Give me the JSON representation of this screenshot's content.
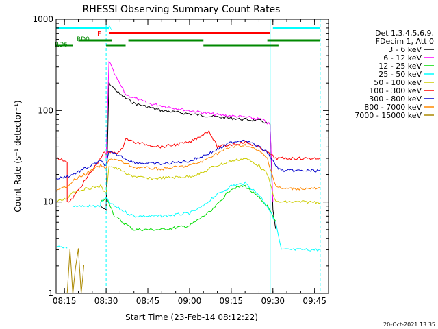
{
  "chart_data": {
    "type": "line",
    "title": "RHESSI Observing Summary Count Rates",
    "xlabel": "Start Time (23-Feb-14 08:12:22)",
    "ylabel": "Count Rate (s⁻¹ detector⁻¹)",
    "y_scale": "log",
    "ylim": [
      1,
      1000
    ],
    "xlim": [
      "08:12",
      "09:50"
    ],
    "x_ticks": [
      "08:15",
      "08:30",
      "08:45",
      "09:00",
      "09:15",
      "09:30",
      "09:45"
    ],
    "y_ticks": [
      "1",
      "10",
      "100",
      "1000"
    ],
    "footer": "20-Oct-2021 13:35",
    "legend_position": "right",
    "legend_header": [
      "Det 1,3,4,5,6,9,",
      "FDecim 1, Att 0"
    ],
    "series": [
      {
        "name": "3 - 6 keV",
        "color": "#000000",
        "x": [
          "08:12",
          "08:16",
          "08:16",
          "08:18",
          "08:18",
          "08:28",
          "08:28",
          "08:30",
          "08:30",
          "08:31",
          "08:35",
          "08:40",
          "08:50",
          "09:00",
          "09:10",
          "09:20",
          "09:26",
          "09:29",
          "09:30",
          "09:31"
        ],
        "y": [
          null,
          null,
          null,
          null,
          null,
          null,
          9,
          8,
          9,
          200,
          150,
          120,
          100,
          92,
          85,
          80,
          77,
          70,
          8,
          5
        ]
      },
      {
        "name": "6 - 12 keV",
        "color": "#ff00ff",
        "x": [
          "08:30",
          "08:31",
          "08:33",
          "08:37",
          "08:45",
          "09:00",
          "09:10",
          "09:20",
          "09:26",
          "09:29",
          "09:30"
        ],
        "y": [
          30,
          350,
          250,
          150,
          120,
          100,
          90,
          85,
          80,
          70,
          10
        ]
      },
      {
        "name": "12 - 25 keV",
        "color": "#00dd00",
        "x": [
          "08:28",
          "08:30",
          "08:31",
          "08:33",
          "08:36",
          "08:40",
          "08:50",
          "09:00",
          "09:05",
          "09:08",
          "09:15",
          "09:20",
          "09:25",
          "09:28",
          "09:31"
        ],
        "y": [
          10,
          11,
          10,
          7,
          6,
          5,
          5,
          5.5,
          7,
          8,
          14,
          15,
          11,
          9,
          6
        ]
      },
      {
        "name": "25 - 50 keV",
        "color": "#00ffff",
        "x": [
          "08:12",
          "08:16",
          "08:16",
          "08:18",
          "08:18",
          "08:28",
          "08:28",
          "08:30",
          "08:31",
          "08:33",
          "08:36",
          "08:40",
          "08:50",
          "09:00",
          "09:05",
          "09:08",
          "09:15",
          "09:20",
          "09:25",
          "09:28",
          "09:31",
          "09:33",
          "09:33",
          "09:47"
        ],
        "y": [
          3.2,
          3.2,
          null,
          null,
          9,
          9,
          10,
          11,
          10,
          9,
          8,
          7,
          7,
          7.5,
          9,
          11,
          15,
          16,
          12,
          9,
          6,
          3,
          3,
          3
        ]
      },
      {
        "name": "50 - 100 keV",
        "color": "#cccc00",
        "x": [
          "08:12",
          "08:16",
          "08:18",
          "08:28",
          "08:30",
          "08:31",
          "08:36",
          "08:37",
          "08:45",
          "09:00",
          "09:05",
          "09:08",
          "09:15",
          "09:20",
          "09:25",
          "09:28",
          "09:31",
          "09:33",
          "09:47"
        ],
        "y": [
          10,
          11,
          13,
          15,
          12,
          25,
          22,
          20,
          18,
          19,
          21,
          24,
          28,
          30,
          25,
          20,
          10,
          10,
          10
        ]
      },
      {
        "name": "100 - 300 keV",
        "color": "#ff0000",
        "x": [
          "08:12",
          "08:16",
          "08:16",
          "08:17",
          "08:28",
          "08:29",
          "08:30",
          "08:31",
          "08:35",
          "08:36",
          "08:37",
          "08:40",
          "08:50",
          "09:00",
          "09:05",
          "09:07",
          "09:10",
          "09:20",
          "09:25",
          "09:28",
          "09:31",
          "09:33",
          "09:47"
        ],
        "y": [
          30,
          28,
          10,
          10,
          30,
          35,
          33,
          35,
          35,
          40,
          50,
          45,
          40,
          45,
          55,
          60,
          40,
          45,
          40,
          35,
          30,
          30,
          30
        ]
      },
      {
        "name": "300 - 800 keV",
        "color": "#0000cc",
        "x": [
          "08:12",
          "08:16",
          "08:18",
          "08:28",
          "08:30",
          "08:31",
          "08:35",
          "08:40",
          "08:50",
          "09:00",
          "09:05",
          "09:08",
          "09:15",
          "09:20",
          "09:25",
          "09:28",
          "09:31",
          "09:33",
          "09:47"
        ],
        "y": [
          18,
          19,
          20,
          28,
          25,
          35,
          32,
          27,
          26,
          28,
          32,
          35,
          45,
          48,
          40,
          35,
          25,
          22,
          22
        ]
      },
      {
        "name": "800 - 7000 keV",
        "color": "#ff8800",
        "x": [
          "08:12",
          "08:16",
          "08:18",
          "08:28",
          "08:30",
          "08:31",
          "08:35",
          "08:40",
          "08:50",
          "09:00",
          "09:05",
          "09:08",
          "09:15",
          "09:20",
          "09:25",
          "09:28",
          "09:31",
          "09:33",
          "09:47"
        ],
        "y": [
          13,
          15,
          17,
          25,
          23,
          30,
          28,
          24,
          23,
          25,
          28,
          32,
          40,
          42,
          36,
          30,
          15,
          14,
          14
        ]
      },
      {
        "name": "7000 - 15000 keV",
        "color": "#aa8800",
        "x": [
          "08:16",
          "08:17",
          "08:18",
          "08:19",
          "08:20",
          "08:21",
          "08:22"
        ],
        "y": [
          1,
          3,
          1,
          2,
          3,
          1,
          2
        ]
      }
    ],
    "state_bars": [
      {
        "label": "N",
        "color": "#00ffff",
        "segments": [
          [
            "08:12",
            "08:31"
          ],
          [
            "09:30",
            "09:47"
          ]
        ],
        "row": "top"
      },
      {
        "label": "F",
        "color": "#ff0000",
        "segments": [
          [
            "08:31",
            "09:29"
          ]
        ],
        "row": "second"
      },
      {
        "label": "RD0",
        "color": "#008800",
        "segments": [
          [
            "08:20",
            "08:32"
          ],
          [
            "08:38",
            "09:05"
          ],
          [
            "09:28",
            "09:47"
          ]
        ],
        "row": "third"
      },
      {
        "label": "RD6",
        "color": "#008800",
        "segments": [
          [
            "08:12",
            "08:18"
          ],
          [
            "08:30",
            "08:37"
          ],
          [
            "09:05",
            "09:32"
          ]
        ],
        "row": "fourth"
      }
    ],
    "grid": false
  }
}
